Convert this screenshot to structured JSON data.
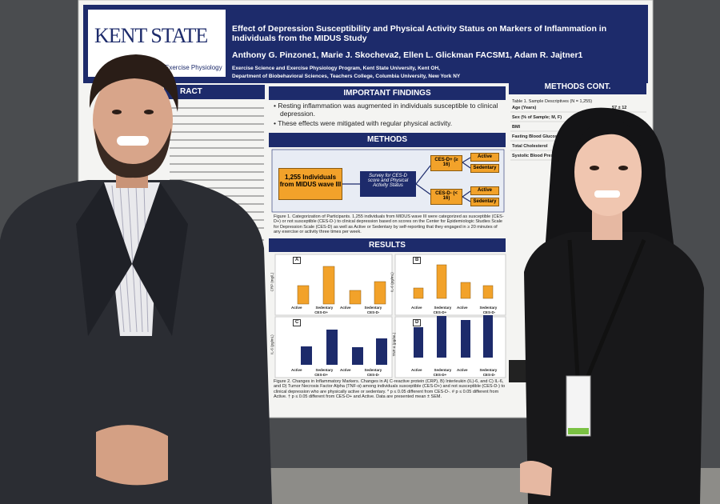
{
  "poster": {
    "logo": {
      "name": "KENT STATE",
      "department": "Exercise Physiology"
    },
    "title": "Effect of Depression Susceptibility and Physical Activity Status on Markers of Inflammation in Individuals from the MIDUS Study",
    "authors": "Anthony G. Pinzone1, Marie J. Skocheva2, Ellen L. Glickman FACSM1, Adam R. Jajtner1",
    "affiliations": [
      "Exercise Science and Exercise Physiology Program, Kent State University, Kent OH,",
      "Department of Biobehavioral Sciences, Teachers College, Columbia University, New York NY"
    ],
    "abstract_header": "RACT",
    "findings": {
      "header": "IMPORTANT FINDINGS",
      "bullets": [
        "Resting inflammation was augmented in individuals susceptible to clinical depression.",
        "These effects were mitigated with regular physical activity."
      ]
    },
    "methods": {
      "header": "METHODS",
      "participants": "1,255 Individuals from MIDUS wave III",
      "survey": "Survey for CES-D score and Physical Activity Status",
      "positive": "CES-D+ (≥ 16)",
      "negative": "CES-D- (< 16)",
      "active": "Active",
      "sedentary": "Sedentary",
      "caption": "Figure 1. Categorization of Participants. 1,255 individuals from MIDUS wave III were categorized as susceptible (CES-D+) or not susceptible (CES-D-) to clinical depression based on scores on the Center for Epidemiologic Studies Scale for Depression Scale (CES-D) as well as Active or Sedentary by self-reporting that they engaged in ≥ 20 minutes of any exercise or activity three times per week."
    },
    "results": {
      "header": "RESULTS",
      "panels": [
        {
          "letter": "A",
          "axis": "CRP (mg/L)"
        },
        {
          "letter": "B",
          "axis": "IL-6 (pg/mL)"
        },
        {
          "letter": "C",
          "axis": "IL-6 (pg/mL)"
        },
        {
          "letter": "D",
          "axis": "TNF-α (pg/mL)"
        }
      ],
      "active": "Active",
      "sedentary": "Sedentary",
      "positive": "CES-D+",
      "negative": "CES-D-",
      "caption": "Figure 2. Changes in Inflammatory Markers. Changes in A) C-reactive protein (CRP), B) Interleukin (IL)-6, and C) IL-6, and D) Tumor Necrosis Factor Alpha (TNF-α) among individuals susceptible (CES-D+) and not susceptible (CES-D-) to clinical depression who are physically active or sedentary. * p ≤ 0.05 different from CES-D-. # p ≤ 0.05 different from Active. † p ≤ 0.05 different from CES-D+ and Active. Data are presented mean ± SEM."
    },
    "methods_cont": {
      "header": "METHODS CONT.",
      "table_title": "Table 1. Sample Descriptives (N = 1,255)",
      "rows": [
        [
          "Age (Years)",
          "57 ± 12"
        ],
        [
          "Sex (% of Sample; M, F)",
          ""
        ],
        [
          "BMI",
          ""
        ],
        [
          "Fasting Blood Glucose",
          ""
        ],
        [
          "Total Cholesterol",
          ""
        ],
        [
          "Systolic Blood Pressure",
          ""
        ]
      ]
    }
  }
}
